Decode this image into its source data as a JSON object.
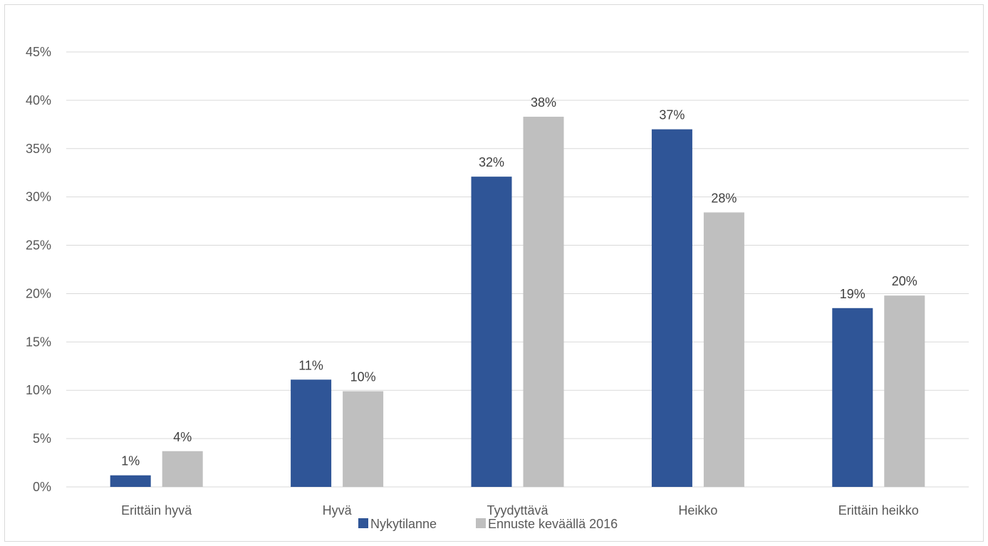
{
  "chart_data": {
    "type": "bar",
    "categories": [
      "Erittäin hyvä",
      "Hyvä",
      "Tyydyttävä",
      "Heikko",
      "Erittäin heikko"
    ],
    "series": [
      {
        "name": "Nykytilanne",
        "values": [
          1.2,
          11.1,
          32.1,
          37.0,
          18.5
        ],
        "labels": [
          "1%",
          "11%",
          "32%",
          "37%",
          "19%"
        ],
        "color": "#2f5597"
      },
      {
        "name": "Ennuste keväällä 2016",
        "values": [
          3.7,
          9.9,
          38.3,
          28.4,
          19.8
        ],
        "labels": [
          "4%",
          "10%",
          "38%",
          "28%",
          "20%"
        ],
        "color": "#bfbfbf"
      }
    ],
    "ylim": [
      0,
      45
    ],
    "yticks": [
      0,
      5,
      10,
      15,
      20,
      25,
      30,
      35,
      40,
      45
    ],
    "ytick_labels": [
      "0%",
      "5%",
      "10%",
      "15%",
      "20%",
      "25%",
      "30%",
      "35%",
      "40%",
      "45%"
    ],
    "grid": true,
    "legend_position": "bottom",
    "title": "",
    "xlabel": "",
    "ylabel": ""
  }
}
